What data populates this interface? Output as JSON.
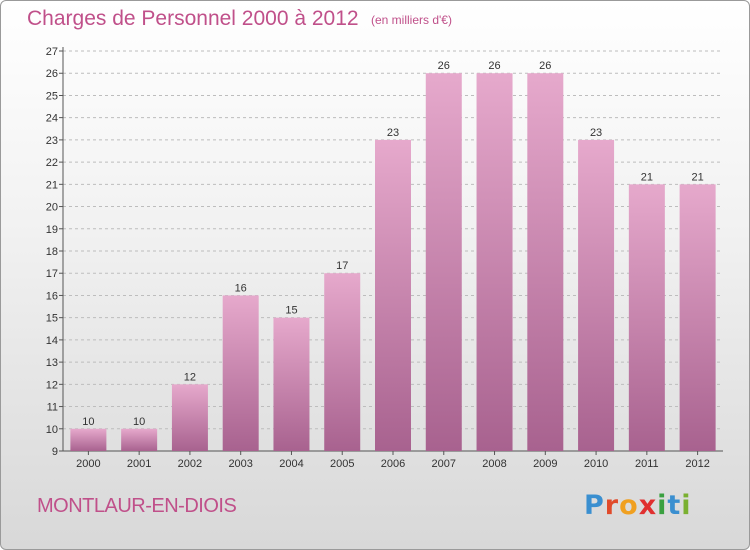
{
  "title": "Charges de Personnel 2000 à 2012",
  "subtitle": "(en milliers d'€)",
  "commune": "MONTLAUR-EN-DIOIS",
  "brand": {
    "letters": [
      "P",
      "r",
      "o",
      "x",
      "i",
      "t",
      "i"
    ],
    "colors": [
      "#3a8fd0",
      "#e04a2a",
      "#f0a020",
      "#e03030",
      "#3aa040",
      "#3a8fd0",
      "#7ab030"
    ]
  },
  "colors": {
    "title": "#c0508a",
    "bar_top": "#e6a9cc",
    "bar_bottom": "#a8628f",
    "grid": "#bdbdbd"
  },
  "chart_data": {
    "type": "bar",
    "title": "Charges de Personnel 2000 à 2012",
    "subtitle": "(en milliers d'€)",
    "categories": [
      "2000",
      "2001",
      "2002",
      "2003",
      "2004",
      "2005",
      "2006",
      "2007",
      "2008",
      "2009",
      "2010",
      "2011",
      "2012"
    ],
    "values": [
      10,
      10,
      12,
      16,
      15,
      17,
      23,
      26,
      26,
      26,
      23,
      21,
      21
    ],
    "value_labels": [
      "10",
      "10",
      "12",
      "16",
      "15",
      "17",
      "23",
      "26",
      "26",
      "26",
      "23",
      "21",
      "21"
    ],
    "yticks": [
      9,
      10,
      11,
      12,
      13,
      14,
      15,
      16,
      17,
      18,
      19,
      20,
      21,
      22,
      23,
      24,
      25,
      26,
      27
    ],
    "ylim": [
      9,
      27
    ],
    "grid": true
  }
}
